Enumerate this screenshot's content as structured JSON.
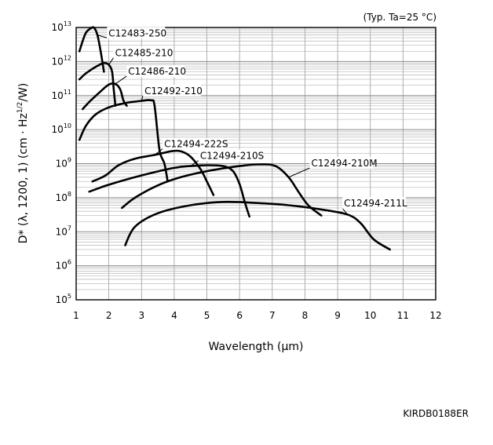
{
  "chart_data": {
    "type": "line",
    "condition_note": "(Typ. Ta=25 °C)",
    "xlabel": "Wavelength (μm)",
    "ylabel": "D* (λ, 1200, 1) (cm · Hz1/2/W)",
    "ylabel_parts": {
      "before": "D* (λ, 1200, 1) (cm · Hz",
      "sup": "1/2",
      "after": "/W)"
    },
    "xlim": [
      1,
      12
    ],
    "ylim": [
      100000,
      10000000000000
    ],
    "y_scale": "log",
    "grid": true,
    "x_ticks": [
      "1",
      "2",
      "3",
      "4",
      "5",
      "6",
      "7",
      "8",
      "9",
      "10",
      "11",
      "12"
    ],
    "y_ticks": [
      {
        "base": "10",
        "exp": "5"
      },
      {
        "base": "10",
        "exp": "6"
      },
      {
        "base": "10",
        "exp": "7"
      },
      {
        "base": "10",
        "exp": "8"
      },
      {
        "base": "10",
        "exp": "9"
      },
      {
        "base": "10",
        "exp": "10"
      },
      {
        "base": "10",
        "exp": "11"
      },
      {
        "base": "10",
        "exp": "12"
      },
      {
        "base": "10",
        "exp": "13"
      }
    ],
    "series": [
      {
        "name": "C12483-250",
        "label_at": [
          1.8,
          4000000000000.0
        ],
        "points": [
          [
            1.1,
            2000000000000.0
          ],
          [
            1.2,
            4000000000000.0
          ],
          [
            1.3,
            7000000000000.0
          ],
          [
            1.45,
            9500000000000.0
          ],
          [
            1.55,
            9800000000000.0
          ],
          [
            1.65,
            6000000000000.0
          ],
          [
            1.75,
            2000000000000.0
          ],
          [
            1.85,
            500000000000.0
          ]
        ]
      },
      {
        "name": "C12485-210",
        "label_at": [
          2.0,
          1050000000000.0
        ],
        "points": [
          [
            1.1,
            300000000000.0
          ],
          [
            1.3,
            450000000000.0
          ],
          [
            1.6,
            700000000000.0
          ],
          [
            1.85,
            900000000000.0
          ],
          [
            2.0,
            800000000000.0
          ],
          [
            2.1,
            500000000000.0
          ],
          [
            2.15,
            150000000000.0
          ],
          [
            2.2,
            50000000000.0
          ]
        ]
      },
      {
        "name": "C12486-210",
        "label_at": [
          2.4,
          300000000000.0
        ],
        "points": [
          [
            1.2,
            40000000000.0
          ],
          [
            1.4,
            65000000000.0
          ],
          [
            1.7,
            120000000000.0
          ],
          [
            2.0,
            210000000000.0
          ],
          [
            2.2,
            220000000000.0
          ],
          [
            2.35,
            150000000000.0
          ],
          [
            2.45,
            70000000000.0
          ],
          [
            2.55,
            50000000000.0
          ]
        ]
      },
      {
        "name": "C12492-210",
        "label_at": [
          2.9,
          80000000000.0
        ],
        "points": [
          [
            1.1,
            5000000000.0
          ],
          [
            1.3,
            13000000000.0
          ],
          [
            1.6,
            28000000000.0
          ],
          [
            2.0,
            45000000000.0
          ],
          [
            2.5,
            60000000000.0
          ],
          [
            3.0,
            70000000000.0
          ],
          [
            3.3,
            72000000000.0
          ],
          [
            3.4,
            50000000000.0
          ],
          [
            3.55,
            2500000000.0
          ],
          [
            3.7,
            1000000000.0
          ],
          [
            3.8,
            300000000.0
          ]
        ]
      },
      {
        "name": "C12494-222S",
        "label_at": [
          3.5,
          2200000000.0
        ],
        "points": [
          [
            1.5,
            300000000.0
          ],
          [
            1.9,
            450000000.0
          ],
          [
            2.3,
            900000000.0
          ],
          [
            2.8,
            1400000000.0
          ],
          [
            3.4,
            1800000000.0
          ],
          [
            3.9,
            2300000000.0
          ],
          [
            4.2,
            2300000000.0
          ],
          [
            4.5,
            1600000000.0
          ],
          [
            4.8,
            700000000.0
          ],
          [
            5.0,
            300000000.0
          ],
          [
            5.2,
            120000000.0
          ]
        ]
      },
      {
        "name": "C12494-210S",
        "label_at": [
          4.6,
          1000000000.0
        ],
        "points": [
          [
            1.4,
            150000000.0
          ],
          [
            2.0,
            240000000.0
          ],
          [
            3.0,
            450000000.0
          ],
          [
            4.0,
            750000000.0
          ],
          [
            4.5,
            850000000.0
          ],
          [
            5.0,
            900000000.0
          ],
          [
            5.5,
            850000000.0
          ],
          [
            5.8,
            600000000.0
          ],
          [
            6.0,
            250000000.0
          ],
          [
            6.15,
            80000000.0
          ],
          [
            6.3,
            28000000.0
          ]
        ]
      },
      {
        "name": "C12494-210M",
        "label_at": [
          8.0,
          600000000.0
        ],
        "points": [
          [
            2.4,
            50000000.0
          ],
          [
            2.8,
            100000000.0
          ],
          [
            3.5,
            230000000.0
          ],
          [
            4.2,
            400000000.0
          ],
          [
            5.0,
            600000000.0
          ],
          [
            6.0,
            850000000.0
          ],
          [
            6.6,
            950000000.0
          ],
          [
            7.1,
            850000000.0
          ],
          [
            7.5,
            400000000.0
          ],
          [
            7.8,
            150000000.0
          ],
          [
            8.1,
            60000000.0
          ],
          [
            8.5,
            30000000.0
          ]
        ]
      },
      {
        "name": "C12494-211L",
        "label_at": [
          9.0,
          40000000.0
        ],
        "points": [
          [
            2.5,
            4000000.0
          ],
          [
            2.8,
            14000000.0
          ],
          [
            3.5,
            35000000.0
          ],
          [
            4.5,
            60000000.0
          ],
          [
            5.5,
            75000000.0
          ],
          [
            6.5,
            70000000.0
          ],
          [
            7.5,
            60000000.0
          ],
          [
            8.5,
            45000000.0
          ],
          [
            9.3,
            32000000.0
          ],
          [
            9.7,
            18000000.0
          ],
          [
            10.1,
            6000000.0
          ],
          [
            10.6,
            3000000.0
          ]
        ]
      }
    ]
  },
  "doc_code": "KIRDB0188ER"
}
